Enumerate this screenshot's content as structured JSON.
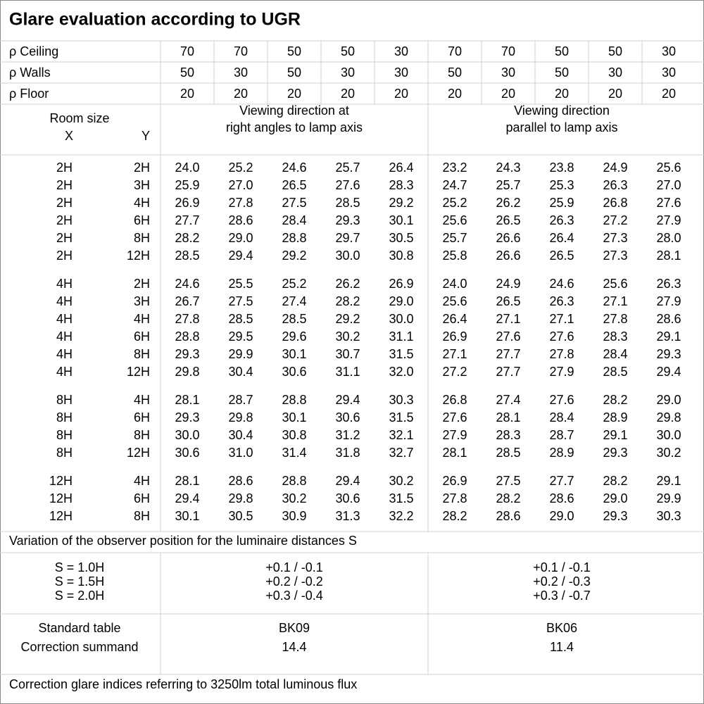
{
  "title": "Glare evaluation according to UGR",
  "reflectances": [
    {
      "label": "ρ Ceiling",
      "values": [
        "70",
        "70",
        "50",
        "50",
        "30",
        "70",
        "70",
        "50",
        "50",
        "30"
      ]
    },
    {
      "label": "ρ Walls",
      "values": [
        "50",
        "30",
        "50",
        "30",
        "30",
        "50",
        "30",
        "50",
        "30",
        "30"
      ]
    },
    {
      "label": "ρ Floor",
      "values": [
        "20",
        "20",
        "20",
        "20",
        "20",
        "20",
        "20",
        "20",
        "20",
        "20"
      ]
    }
  ],
  "header": {
    "room_size": "Room size",
    "x": "X",
    "y": "Y",
    "right_angles": [
      "Viewing direction at",
      "right angles to lamp axis"
    ],
    "parallel": [
      "Viewing direction",
      "parallel to lamp axis"
    ]
  },
  "groups": [
    {
      "rows": [
        {
          "x": "2H",
          "y": "2H",
          "values": [
            "24.0",
            "25.2",
            "24.6",
            "25.7",
            "26.4",
            "23.2",
            "24.3",
            "23.8",
            "24.9",
            "25.6"
          ]
        },
        {
          "x": "2H",
          "y": "3H",
          "values": [
            "25.9",
            "27.0",
            "26.5",
            "27.6",
            "28.3",
            "24.7",
            "25.7",
            "25.3",
            "26.3",
            "27.0"
          ]
        },
        {
          "x": "2H",
          "y": "4H",
          "values": [
            "26.9",
            "27.8",
            "27.5",
            "28.5",
            "29.2",
            "25.2",
            "26.2",
            "25.9",
            "26.8",
            "27.6"
          ]
        },
        {
          "x": "2H",
          "y": "6H",
          "values": [
            "27.7",
            "28.6",
            "28.4",
            "29.3",
            "30.1",
            "25.6",
            "26.5",
            "26.3",
            "27.2",
            "27.9"
          ]
        },
        {
          "x": "2H",
          "y": "8H",
          "values": [
            "28.2",
            "29.0",
            "28.8",
            "29.7",
            "30.5",
            "25.7",
            "26.6",
            "26.4",
            "27.3",
            "28.0"
          ]
        },
        {
          "x": "2H",
          "y": "12H",
          "values": [
            "28.5",
            "29.4",
            "29.2",
            "30.0",
            "30.8",
            "25.8",
            "26.6",
            "26.5",
            "27.3",
            "28.1"
          ]
        }
      ]
    },
    {
      "rows": [
        {
          "x": "4H",
          "y": "2H",
          "values": [
            "24.6",
            "25.5",
            "25.2",
            "26.2",
            "26.9",
            "24.0",
            "24.9",
            "24.6",
            "25.6",
            "26.3"
          ]
        },
        {
          "x": "4H",
          "y": "3H",
          "values": [
            "26.7",
            "27.5",
            "27.4",
            "28.2",
            "29.0",
            "25.6",
            "26.5",
            "26.3",
            "27.1",
            "27.9"
          ]
        },
        {
          "x": "4H",
          "y": "4H",
          "values": [
            "27.8",
            "28.5",
            "28.5",
            "29.2",
            "30.0",
            "26.4",
            "27.1",
            "27.1",
            "27.8",
            "28.6"
          ]
        },
        {
          "x": "4H",
          "y": "6H",
          "values": [
            "28.8",
            "29.5",
            "29.6",
            "30.2",
            "31.1",
            "26.9",
            "27.6",
            "27.6",
            "28.3",
            "29.1"
          ]
        },
        {
          "x": "4H",
          "y": "8H",
          "values": [
            "29.3",
            "29.9",
            "30.1",
            "30.7",
            "31.5",
            "27.1",
            "27.7",
            "27.8",
            "28.4",
            "29.3"
          ]
        },
        {
          "x": "4H",
          "y": "12H",
          "values": [
            "29.8",
            "30.4",
            "30.6",
            "31.1",
            "32.0",
            "27.2",
            "27.7",
            "27.9",
            "28.5",
            "29.4"
          ]
        }
      ]
    },
    {
      "rows": [
        {
          "x": "8H",
          "y": "4H",
          "values": [
            "28.1",
            "28.7",
            "28.8",
            "29.4",
            "30.3",
            "26.8",
            "27.4",
            "27.6",
            "28.2",
            "29.0"
          ]
        },
        {
          "x": "8H",
          "y": "6H",
          "values": [
            "29.3",
            "29.8",
            "30.1",
            "30.6",
            "31.5",
            "27.6",
            "28.1",
            "28.4",
            "28.9",
            "29.8"
          ]
        },
        {
          "x": "8H",
          "y": "8H",
          "values": [
            "30.0",
            "30.4",
            "30.8",
            "31.2",
            "32.1",
            "27.9",
            "28.3",
            "28.7",
            "29.1",
            "30.0"
          ]
        },
        {
          "x": "8H",
          "y": "12H",
          "values": [
            "30.6",
            "31.0",
            "31.4",
            "31.8",
            "32.7",
            "28.1",
            "28.5",
            "28.9",
            "29.3",
            "30.2"
          ]
        }
      ]
    },
    {
      "rows": [
        {
          "x": "12H",
          "y": "4H",
          "values": [
            "28.1",
            "28.6",
            "28.8",
            "29.4",
            "30.2",
            "26.9",
            "27.5",
            "27.7",
            "28.2",
            "29.1"
          ]
        },
        {
          "x": "12H",
          "y": "6H",
          "values": [
            "29.4",
            "29.8",
            "30.2",
            "30.6",
            "31.5",
            "27.8",
            "28.2",
            "28.6",
            "29.0",
            "29.9"
          ]
        },
        {
          "x": "12H",
          "y": "8H",
          "values": [
            "30.1",
            "30.5",
            "30.9",
            "31.3",
            "32.2",
            "28.2",
            "28.6",
            "29.0",
            "29.3",
            "30.3"
          ]
        }
      ]
    }
  ],
  "variation": {
    "title": "Variation of the observer position for the luminaire distances S",
    "rows": [
      {
        "s": "S = 1.0H",
        "right_angles": "+0.1 / -0.1",
        "parallel": "+0.1 / -0.1"
      },
      {
        "s": "S = 1.5H",
        "right_angles": "+0.2 / -0.2",
        "parallel": "+0.2 / -0.3"
      },
      {
        "s": "S = 2.0H",
        "right_angles": "+0.3 / -0.4",
        "parallel": "+0.3 / -0.7"
      }
    ]
  },
  "standard": {
    "labels": [
      "Standard table",
      "Correction summand"
    ],
    "right_angles": [
      "BK09",
      "14.4"
    ],
    "parallel": [
      "BK06",
      "11.4"
    ]
  },
  "footer": "Correction glare indices referring to 3250lm total luminous flux"
}
